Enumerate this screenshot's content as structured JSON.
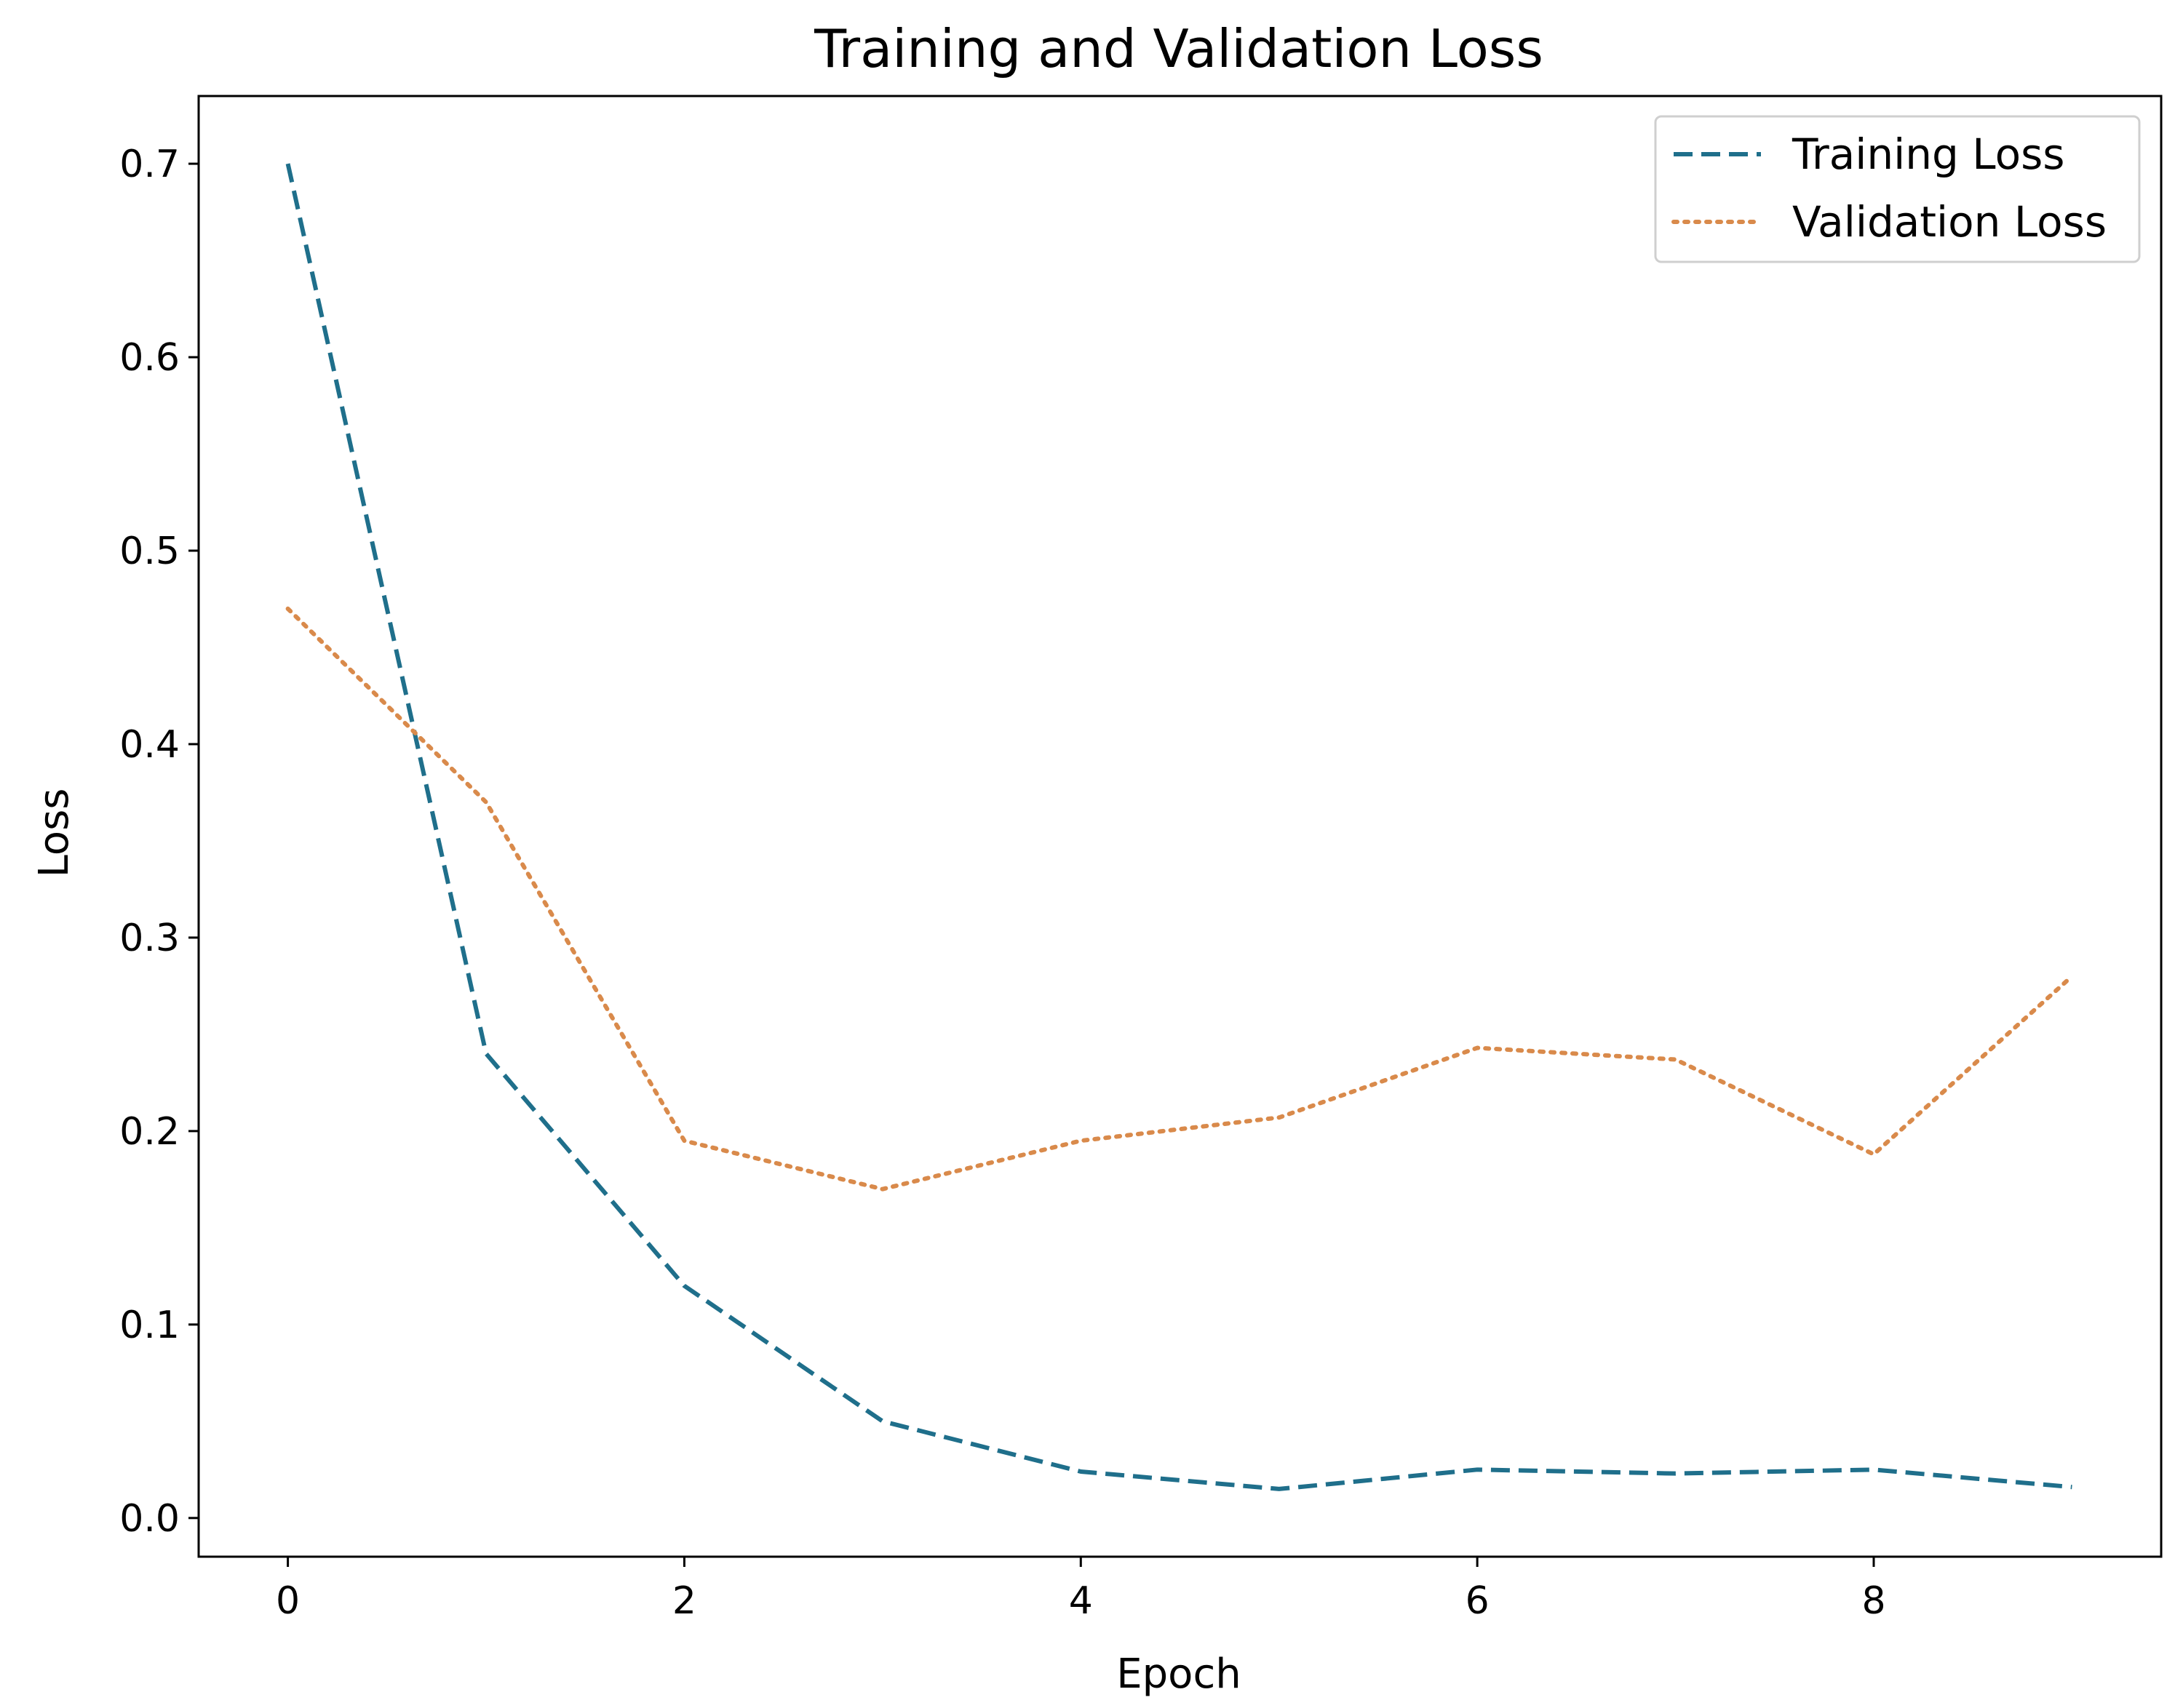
{
  "chart_data": {
    "type": "line",
    "title": "Training and Validation Loss",
    "xlabel": "Epoch",
    "ylabel": "Loss",
    "xlim": [
      -0.45,
      9.45
    ],
    "ylim": [
      -0.02,
      0.735
    ],
    "xticks": [
      0,
      2,
      4,
      6,
      8
    ],
    "yticks": [
      0.0,
      0.1,
      0.2,
      0.3,
      0.4,
      0.5,
      0.6,
      0.7
    ],
    "ytick_labels": [
      "0.0",
      "0.1",
      "0.2",
      "0.3",
      "0.4",
      "0.5",
      "0.6",
      "0.7"
    ],
    "grid": false,
    "legend_position": "top-right",
    "x": [
      0,
      1,
      2,
      3,
      4,
      5,
      6,
      7,
      8,
      9
    ],
    "series": [
      {
        "name": "Training Loss",
        "style": "dashed",
        "color": "#1f6f8b",
        "values": [
          0.7,
          0.24,
          0.12,
          0.05,
          0.024,
          0.015,
          0.025,
          0.023,
          0.025,
          0.016
        ]
      },
      {
        "name": "Validation Loss",
        "style": "dotted",
        "color": "#d98a4b",
        "values": [
          0.47,
          0.37,
          0.195,
          0.17,
          0.195,
          0.207,
          0.243,
          0.237,
          0.188,
          0.28
        ]
      }
    ]
  }
}
